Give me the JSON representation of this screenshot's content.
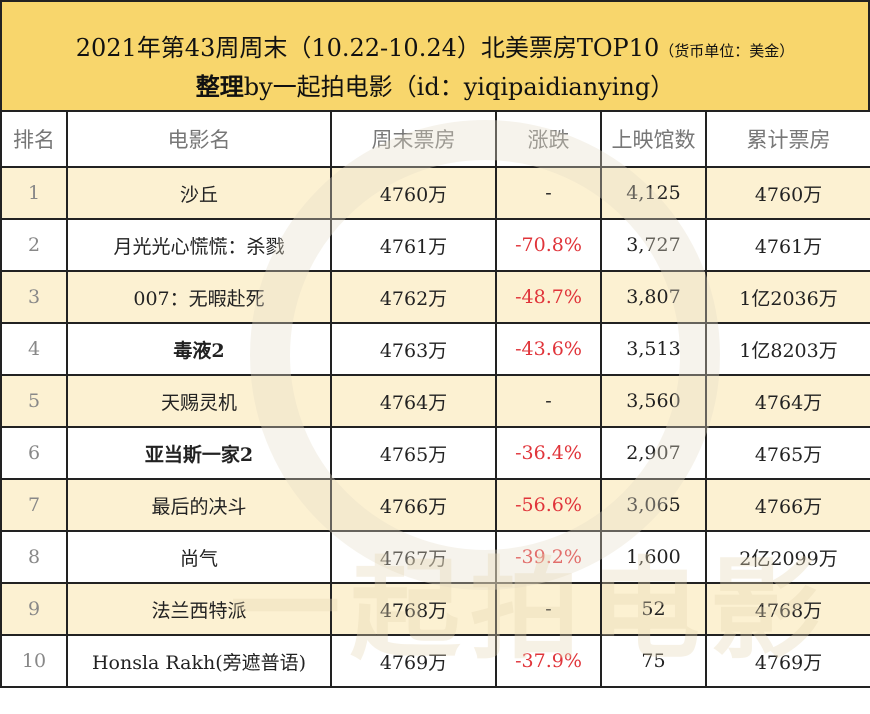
{
  "title": {
    "line1": "2021年第43周周末（10.22-10.24）北美票房TOP10",
    "unit": "（货币单位：美金）",
    "line2_bold": "整理",
    "line2": "by一起拍电影（id：yiqipaidianying）"
  },
  "watermark": "一起拍电影",
  "headers": [
    "排名",
    "电影名",
    "周末票房",
    "涨跌",
    "上映馆数",
    "累计票房"
  ],
  "rows": [
    [
      "1",
      "沙丘",
      "4760万",
      "-",
      "4,125",
      "4760万"
    ],
    [
      "2",
      "月光光心慌慌：杀戮",
      "4761万",
      "-70.8%",
      "3,727",
      "4761万"
    ],
    [
      "3",
      "007：无暇赴死",
      "4762万",
      "-48.7%",
      "3,807",
      "1亿2036万"
    ],
    [
      "4",
      "毒液2",
      "4763万",
      "-43.6%",
      "3,513",
      "1亿8203万"
    ],
    [
      "5",
      "天赐灵机",
      "4764万",
      "-",
      "3,560",
      "4764万"
    ],
    [
      "6",
      "亚当斯一家2",
      "4765万",
      "-36.4%",
      "2,907",
      "4765万"
    ],
    [
      "7",
      "最后的决斗",
      "4766万",
      "-56.6%",
      "3,065",
      "4766万"
    ],
    [
      "8",
      "尚气",
      "4767万",
      "-39.2%",
      "1,600",
      "2亿2099万"
    ],
    [
      "9",
      "法兰西特派",
      "4768万",
      "-",
      "52",
      "4768万"
    ],
    [
      "10",
      "Honsla Rakh(旁遮普语)",
      "4769万",
      "-37.9%",
      "75",
      "4769万"
    ]
  ],
  "colors": {
    "title_bg": "#f8d66c",
    "odd_row": "#fcf1d2",
    "negative": "#e0343a"
  }
}
